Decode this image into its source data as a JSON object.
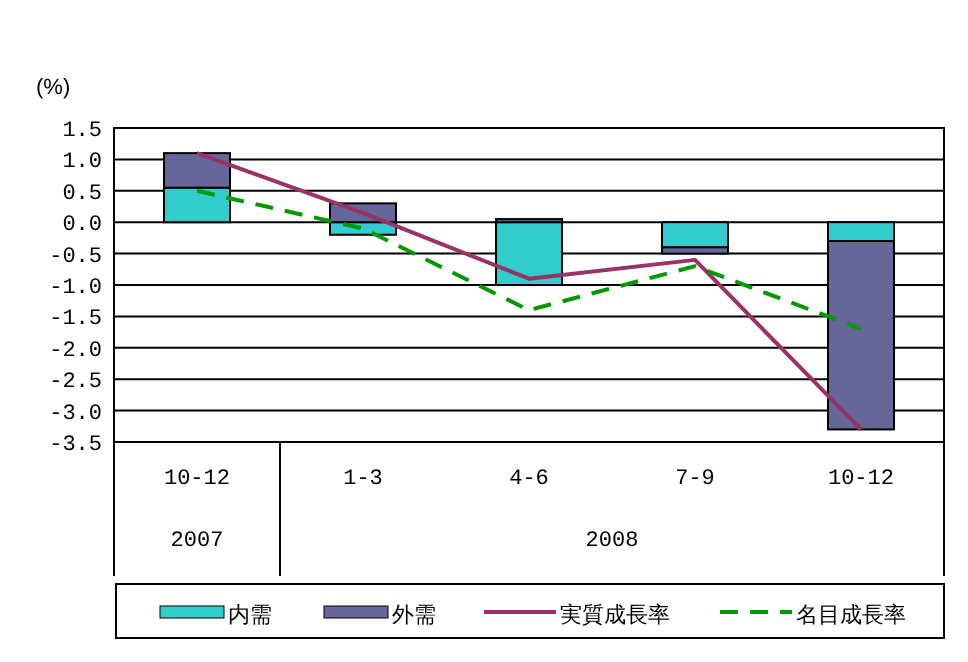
{
  "chart_data": {
    "type": "bar",
    "stacked": true,
    "ylabel": "(%)",
    "categories": [
      "10-12",
      "1-3",
      "4-6",
      "7-9",
      "10-12"
    ],
    "annotations": [
      "2007",
      "2008"
    ],
    "ylim": [
      -3.5,
      1.5
    ],
    "yticks": [
      1.5,
      {
        "value": 1,
        "label": "1.0"
      },
      0.5,
      {
        "value": 0,
        "label": "0.0"
      },
      -0.5,
      {
        "value": -1,
        "label": "-1.0"
      },
      -1.5,
      {
        "value": -2,
        "label": "-2.0"
      },
      -2.5,
      {
        "value": -3,
        "label": "-3.0"
      },
      -3.5
    ],
    "grid": "y",
    "legend": "bottom",
    "series": [
      {
        "name": "内需",
        "color": "#33cccc",
        "values": [
          0.55,
          -0.2,
          -1.0,
          -0.4,
          -0.3
        ]
      },
      {
        "name": "外需",
        "color": "#666699",
        "values": [
          0.55,
          0.3,
          0.05,
          -0.1,
          -3.0
        ]
      },
      {
        "name": "実質成長率",
        "type": "line",
        "color": "#993366",
        "line_style": "solid",
        "values": [
          1.1,
          0.15,
          -0.9,
          -0.6,
          -3.3
        ]
      },
      {
        "name": "名目成長率",
        "type": "line",
        "color": "#009900",
        "line_style": "dashed",
        "values": [
          0.5,
          -0.1,
          -1.4,
          -0.7,
          -1.7
        ]
      }
    ]
  }
}
